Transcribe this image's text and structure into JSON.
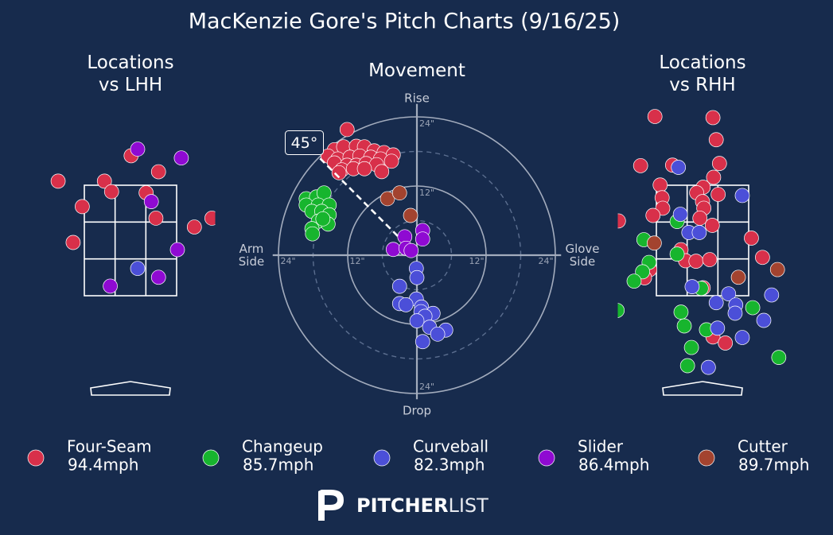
{
  "title": "MacKenzie Gore's Pitch Charts (9/16/25)",
  "legend": [
    {
      "name": "Four-Seam",
      "color": "#d8304a",
      "speed": "94.4mph"
    },
    {
      "name": "Changeup",
      "color": "#17b52e",
      "speed": "85.7mph"
    },
    {
      "name": "Curveball",
      "color": "#4b4fd8",
      "speed": "82.3mph"
    },
    {
      "name": "Slider",
      "color": "#8f0ad2",
      "speed": "86.4mph"
    },
    {
      "name": "Cutter",
      "color": "#a3432f",
      "speed": "89.7mph"
    }
  ],
  "chart_data": [
    {
      "type": "location",
      "title": [
        "Locations",
        "vs LHH"
      ],
      "xlim": [
        -1.3,
        1.3
      ],
      "ylim": [
        0,
        5
      ],
      "series": [
        {
          "pitch": 0,
          "x": [
            -1.11,
            0.01,
            0.43,
            -0.4,
            -0.29,
            0.24,
            -0.74,
            0.39,
            0.98,
            1.25,
            -0.88
          ],
          "y": [
            3.57,
            4.03,
            3.74,
            3.57,
            3.38,
            3.36,
            3.11,
            2.9,
            2.74,
            2.9,
            2.46
          ]
        },
        {
          "pitch": 3,
          "x": [
            0.11,
            0.78,
            0.32,
            0.72,
            -0.31,
            0.43
          ],
          "y": [
            4.15,
            3.99,
            3.2,
            2.33,
            1.67,
            1.83
          ]
        },
        {
          "pitch": 2,
          "x": [
            0.11
          ],
          "y": [
            1.99
          ]
        }
      ]
    },
    {
      "type": "movement",
      "title": [
        "Movement"
      ],
      "xlim": [
        -25,
        25
      ],
      "ylim": [
        -25,
        25
      ],
      "xticks": [
        {
          "value": -24,
          "label": "24\""
        },
        {
          "value": -12,
          "label": "12\""
        },
        {
          "value": 12,
          "label": "12\""
        },
        {
          "value": 24,
          "label": "24\""
        }
      ],
      "yticks": [
        {
          "value": 24,
          "label": "24\""
        },
        {
          "value": 12,
          "label": "12\""
        },
        {
          "value": -24,
          "label": "24\""
        }
      ],
      "rings": [
        12,
        24
      ],
      "dashed_rings": [
        6,
        18
      ],
      "axis_labels": {
        "top": "Rise",
        "bottom": "Drop",
        "left": [
          "Arm",
          "Side"
        ],
        "right": [
          "Glove",
          "Side"
        ]
      },
      "arm_angle": 45,
      "arm_angle_label": "45°",
      "series": [
        {
          "pitch": 1,
          "x": [
            -19.2,
            -17.4,
            -16.1,
            -19.2,
            -17.1,
            -15.2,
            -18.2,
            -16.5,
            -15.2,
            -17.1,
            -15.4,
            -18.2,
            -18.1,
            -16.3
          ],
          "y": [
            9.8,
            10.1,
            10.8,
            8.7,
            8.7,
            8.7,
            7.6,
            7.6,
            7.0,
            5.9,
            5.4,
            4.6,
            3.7,
            6.3
          ]
        },
        {
          "pitch": 4,
          "x": [
            -5.1,
            -3.0,
            -1.1
          ],
          "y": [
            9.8,
            10.8,
            6.9
          ]
        },
        {
          "pitch": 0,
          "x": [
            -12.1,
            -14.3,
            -12.7,
            -10.5,
            -9.1,
            -7.4,
            -5.7,
            -4.1,
            -15.4,
            -13.7,
            -11.6,
            -9.9,
            -8.0,
            -6.3,
            -4.4,
            -14.3,
            -12.1,
            -10.5,
            -8.8,
            -7.0,
            -13.0,
            -11.0,
            -9.1,
            -6.1,
            -13.5
          ],
          "y": [
            21.8,
            18.3,
            18.8,
            18.9,
            18.8,
            18.1,
            17.8,
            17.4,
            17.2,
            16.7,
            17.0,
            17.2,
            17.0,
            16.7,
            16.3,
            16.0,
            15.6,
            15.6,
            15.9,
            15.7,
            14.8,
            15.0,
            15.0,
            14.5,
            14.3
          ]
        },
        {
          "pitch": 3,
          "x": [
            1.0,
            -2.1,
            1.0,
            -4.1,
            -1.9,
            -1.0
          ],
          "y": [
            4.3,
            3.2,
            2.8,
            1.0,
            1.2,
            0.8
          ]
        },
        {
          "pitch": 2,
          "x": [
            -0.1,
            0,
            -3.0,
            -0.1,
            -3.0,
            -1.9,
            0.8,
            0.7,
            2.8,
            1.4,
            0,
            2.2,
            5.0,
            3.6,
            1.0
          ],
          "y": [
            -2.3,
            -3.9,
            -5.4,
            -7.6,
            -8.4,
            -8.6,
            -9.0,
            -9.8,
            -10.1,
            -10.6,
            -11.4,
            -12.5,
            -13.0,
            -13.7,
            -15.0
          ]
        }
      ]
    },
    {
      "type": "location",
      "title": [
        "Locations",
        "vs RHH"
      ],
      "xlim": [
        -1.3,
        1.3
      ],
      "ylim": [
        0,
        5
      ],
      "series": [
        {
          "pitch": 0,
          "x": [
            -0.73,
            0.16,
            0.21,
            -0.95,
            -0.46,
            0.26,
            0.17,
            -0.65,
            0.01,
            -0.09,
            0.24,
            -0.62,
            -0.61,
            0.0,
            0.02,
            -0.76,
            -1.29,
            -0.04,
            0.15,
            0.75,
            -0.33,
            -0.26,
            -0.1,
            0.11,
            0.92,
            -0.81,
            -0.89,
            0.01,
            0.16,
            0.35
          ],
          "y": [
            4.74,
            4.72,
            4.32,
            3.85,
            3.86,
            3.89,
            3.64,
            3.5,
            3.46,
            3.36,
            3.33,
            3.27,
            3.08,
            3.2,
            3.08,
            2.95,
            2.85,
            2.9,
            2.77,
            2.54,
            2.33,
            2.13,
            2.12,
            2.15,
            2.19,
            1.97,
            1.82,
            1.64,
            0.75,
            0.64
          ]
        },
        {
          "pitch": 1,
          "x": [
            -0.39,
            -0.9,
            -0.39,
            -0.82,
            -0.92,
            -1.05,
            -0.02,
            0.77,
            -1.31,
            -0.33,
            -0.28,
            0.06,
            -0.17,
            -0.23,
            1.17
          ],
          "y": [
            2.84,
            2.51,
            2.25,
            2.1,
            1.93,
            1.76,
            1.63,
            1.28,
            1.23,
            1.2,
            0.95,
            0.88,
            0.56,
            0.23,
            0.38
          ]
        },
        {
          "pitch": 2,
          "x": [
            -0.37,
            0.61,
            -0.34,
            -0.21,
            -0.05,
            -0.16,
            0.4,
            1.06,
            0.21,
            0.51,
            0.5,
            0.94,
            0.23,
            0.61,
            0.09
          ],
          "y": [
            3.82,
            3.31,
            2.97,
            2.64,
            2.64,
            1.66,
            1.53,
            1.51,
            1.37,
            1.33,
            1.18,
            1.05,
            0.91,
            0.74,
            0.2
          ]
        },
        {
          "pitch": 4,
          "x": [
            -0.74,
            0.55,
            1.15
          ],
          "y": [
            2.45,
            1.83,
            1.97
          ]
        }
      ]
    }
  ],
  "footer": [
    "PITCHER",
    "LIST"
  ]
}
